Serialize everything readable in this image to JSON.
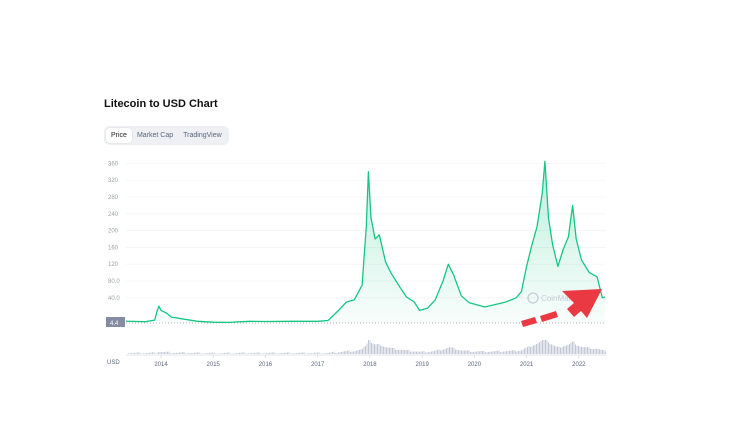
{
  "page": {
    "title": "Litecoin to USD Chart",
    "tabs": [
      {
        "label": "Price",
        "active": true
      },
      {
        "label": "Market Cap",
        "active": false
      },
      {
        "label": "TradingView",
        "active": false
      }
    ]
  },
  "chart_data": {
    "type": "line",
    "title": "Litecoin to USD Chart",
    "xlabel": "",
    "ylabel": "",
    "currency_label": "USD",
    "watermark": "CoinMarketCap",
    "x_ticks": [
      "2014",
      "2015",
      "2016",
      "2017",
      "2018",
      "2019",
      "2020",
      "2021",
      "2022"
    ],
    "y_ticks": [
      "360",
      "320",
      "280",
      "240",
      "200",
      "160",
      "120",
      "80.0",
      "40.0"
    ],
    "current_marker": "4.4",
    "ylim": [
      0,
      400
    ],
    "grid": true,
    "colors": {
      "line": "#16c784",
      "fill": "#16c784",
      "volume": "#c3c8d6",
      "arrow": "#ea3943"
    },
    "series": [
      {
        "values": [
          [
            2013.33,
            4.4
          ],
          [
            2013.7,
            3
          ],
          [
            2013.88,
            7
          ],
          [
            2013.92,
            26
          ],
          [
            2013.96,
            40
          ],
          [
            2014.0,
            30
          ],
          [
            2014.1,
            24
          ],
          [
            2014.2,
            14
          ],
          [
            2014.4,
            10
          ],
          [
            2014.7,
            4
          ],
          [
            2015.0,
            2
          ],
          [
            2015.3,
            1.5
          ],
          [
            2015.55,
            3
          ],
          [
            2015.7,
            4
          ],
          [
            2016.0,
            3.5
          ],
          [
            2016.5,
            4
          ],
          [
            2017.0,
            4
          ],
          [
            2017.2,
            6
          ],
          [
            2017.4,
            30
          ],
          [
            2017.55,
            50
          ],
          [
            2017.7,
            55
          ],
          [
            2017.85,
            90
          ],
          [
            2017.93,
            230
          ],
          [
            2017.97,
            360
          ],
          [
            2018.02,
            250
          ],
          [
            2018.1,
            200
          ],
          [
            2018.18,
            210
          ],
          [
            2018.3,
            145
          ],
          [
            2018.4,
            120
          ],
          [
            2018.55,
            90
          ],
          [
            2018.7,
            62
          ],
          [
            2018.85,
            50
          ],
          [
            2018.95,
            30
          ],
          [
            2019.1,
            35
          ],
          [
            2019.25,
            55
          ],
          [
            2019.4,
            100
          ],
          [
            2019.5,
            140
          ],
          [
            2019.6,
            115
          ],
          [
            2019.75,
            65
          ],
          [
            2019.9,
            48
          ],
          [
            2020.0,
            45
          ],
          [
            2020.2,
            38
          ],
          [
            2020.4,
            44
          ],
          [
            2020.6,
            50
          ],
          [
            2020.8,
            60
          ],
          [
            2020.9,
            75
          ],
          [
            2021.0,
            135
          ],
          [
            2021.1,
            185
          ],
          [
            2021.2,
            230
          ],
          [
            2021.3,
            310
          ],
          [
            2021.35,
            385
          ],
          [
            2021.42,
            250
          ],
          [
            2021.5,
            185
          ],
          [
            2021.6,
            135
          ],
          [
            2021.7,
            175
          ],
          [
            2021.8,
            205
          ],
          [
            2021.88,
            280
          ],
          [
            2021.95,
            200
          ],
          [
            2022.05,
            150
          ],
          [
            2022.2,
            120
          ],
          [
            2022.35,
            110
          ],
          [
            2022.45,
            60
          ],
          [
            2022.5,
            62
          ]
        ]
      }
    ]
  }
}
